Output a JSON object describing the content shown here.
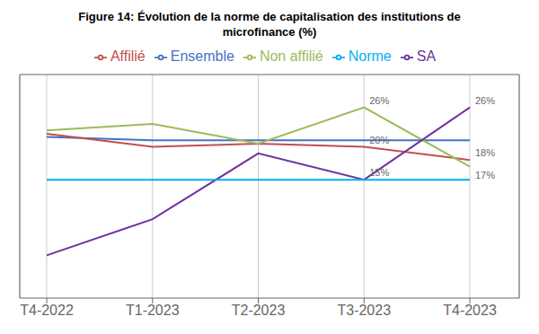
{
  "chart_data": {
    "type": "line",
    "title": "Figure 14: Évolution de la norme de capitalisation des institutions de\nmicrofinance (%)",
    "categories": [
      "T4-2022",
      "T1-2023",
      "T2-2023",
      "T3-2023",
      "T4-2023"
    ],
    "series": [
      {
        "name": "Ensemble",
        "color": "#4472C4",
        "values": [
          21.5,
          21.0,
          21.0,
          21.0,
          21.0
        ]
      },
      {
        "name": "Affilié",
        "color": "#C0504D",
        "values": [
          22.0,
          20.0,
          20.5,
          20.0,
          18.0
        ]
      },
      {
        "name": "Non affilié",
        "color": "#9BBB59",
        "values": [
          22.5,
          23.5,
          20.5,
          26.0,
          17.0
        ]
      },
      {
        "name": "SA",
        "color": "#7030A0",
        "values": [
          3.5,
          9.0,
          19.0,
          15.0,
          26.0
        ]
      },
      {
        "name": "Norme",
        "color": "#00B0F0",
        "values": [
          15.0,
          15.0,
          15.0,
          15.0,
          15.0
        ]
      }
    ],
    "annotations": [
      {
        "x": "T3-2023",
        "y": 26.0,
        "text": "26%"
      },
      {
        "x": "T3-2023",
        "y": 20.0,
        "text": "20%"
      },
      {
        "x": "T3-2023",
        "y": 15.0,
        "text": "15%"
      },
      {
        "x": "T4-2023",
        "y": 26.0,
        "text": "26%"
      },
      {
        "x": "T4-2023",
        "y": 18.0,
        "text": "18%"
      },
      {
        "x": "T4-2023",
        "y": 17.0,
        "text": "17%"
      }
    ],
    "ylim": [
      -3,
      31
    ],
    "tick_labels": "x",
    "grid": true,
    "legend": "top"
  }
}
